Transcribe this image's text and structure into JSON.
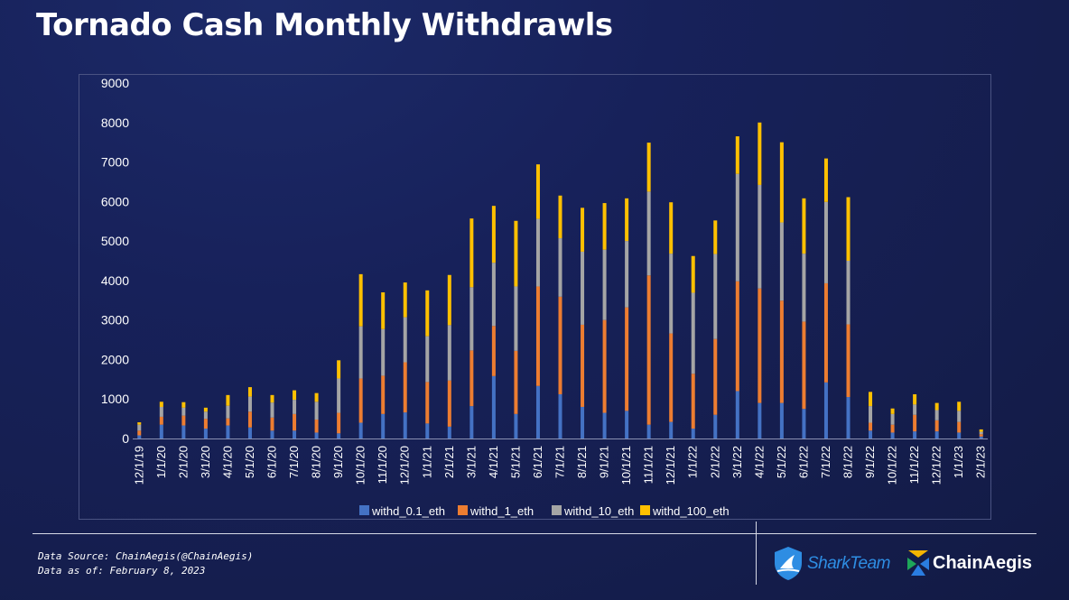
{
  "title": "Tornado Cash Monthly Withdrawls",
  "footer": {
    "source_line": "Data Source: ChainAegis(@ChainAegis)",
    "date_line": "Data as of: February 8, 2023"
  },
  "logos": {
    "shark_team": "SharkTeam",
    "chain_aegis": "ChainAegis"
  },
  "colors": {
    "withd_0.1_eth": "#4472c4",
    "withd_1_eth": "#ed7d31",
    "withd_10_eth": "#a5a5a5",
    "withd_100_eth": "#ffc000"
  },
  "chart_data": {
    "type": "bar",
    "stacked": true,
    "title": "Tornado Cash Monthly Withdrawls",
    "xlabel": "",
    "ylabel": "",
    "ylim": [
      0,
      9000
    ],
    "yticks": [
      0,
      1000,
      2000,
      3000,
      4000,
      5000,
      6000,
      7000,
      8000,
      9000
    ],
    "grid": false,
    "legend_position": "bottom",
    "categories": [
      "12/1/19",
      "1/1/20",
      "2/1/20",
      "3/1/20",
      "4/1/20",
      "5/1/20",
      "6/1/20",
      "7/1/20",
      "8/1/20",
      "9/1/20",
      "10/1/20",
      "11/1/20",
      "12/1/20",
      "1/1/21",
      "2/1/21",
      "3/1/21",
      "4/1/21",
      "5/1/21",
      "6/1/21",
      "7/1/21",
      "8/1/21",
      "9/1/21",
      "10/1/21",
      "11/1/21",
      "12/1/21",
      "1/1/22",
      "2/1/22",
      "3/1/22",
      "4/1/22",
      "5/1/22",
      "6/1/22",
      "7/1/22",
      "8/1/22",
      "9/1/22",
      "10/1/22",
      "11/1/22",
      "12/1/22",
      "1/1/23",
      "2/1/23"
    ],
    "series": [
      {
        "name": "withd_0.1_eth",
        "values": [
          80,
          350,
          330,
          250,
          330,
          280,
          200,
          200,
          150,
          130,
          400,
          620,
          660,
          380,
          300,
          820,
          1580,
          620,
          1330,
          1120,
          800,
          650,
          700,
          350,
          420,
          250,
          600,
          1200,
          900,
          900,
          750,
          1420,
          1050,
          200,
          150,
          180,
          180,
          150,
          50
        ]
      },
      {
        "name": "withd_1_eth",
        "values": [
          120,
          200,
          250,
          250,
          180,
          400,
          330,
          420,
          330,
          520,
          1120,
          970,
          1270,
          1050,
          1170,
          1410,
          1270,
          1600,
          2520,
          2470,
          2080,
          2350,
          2620,
          3780,
          2240,
          1390,
          1920,
          2780,
          2900,
          2590,
          2210,
          2510,
          1840,
          200,
          200,
          420,
          280,
          270,
          60
        ]
      },
      {
        "name": "withd_10_eth",
        "values": [
          150,
          250,
          200,
          180,
          320,
          380,
          380,
          360,
          450,
          870,
          1320,
          1180,
          1140,
          1160,
          1400,
          1600,
          1600,
          1630,
          1710,
          1480,
          1850,
          1780,
          1680,
          2120,
          2020,
          2050,
          2150,
          2720,
          2620,
          1980,
          1720,
          2060,
          1610,
          420,
          270,
          260,
          260,
          280,
          60
        ]
      },
      {
        "name": "withd_100_eth",
        "values": [
          60,
          130,
          140,
          100,
          270,
          240,
          190,
          240,
          220,
          460,
          1320,
          930,
          880,
          1160,
          1270,
          1740,
          1440,
          1660,
          1380,
          1080,
          1110,
          1180,
          1080,
          1240,
          1300,
          930,
          850,
          950,
          1580,
          2030,
          1400,
          1100,
          1610,
          360,
          140,
          260,
          180,
          230,
          60
        ]
      }
    ]
  }
}
